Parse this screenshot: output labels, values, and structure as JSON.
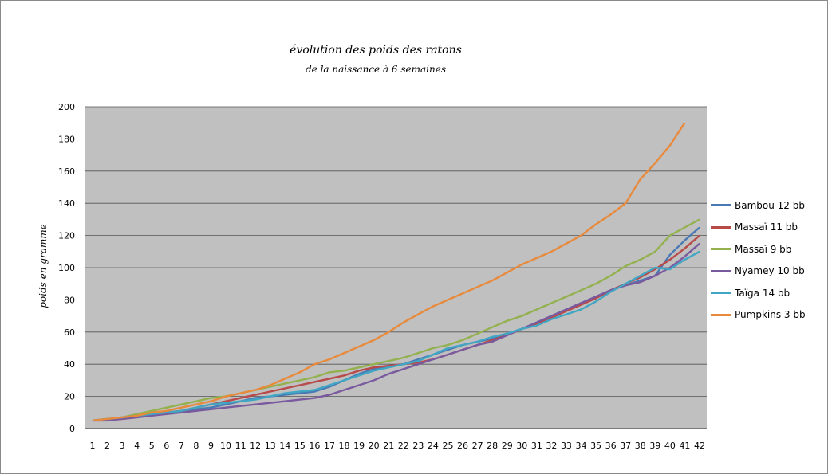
{
  "chart_data": {
    "type": "line",
    "title": "évolution des poids des ratons",
    "subtitle": "de la naissance à 6 semaines",
    "xlabel": "",
    "ylabel": "poids en gramme",
    "ylim": [
      0,
      200
    ],
    "yticks": [
      "0",
      "20",
      "40",
      "60",
      "80",
      "100",
      "120",
      "140",
      "160",
      "180",
      "200"
    ],
    "categories": [
      "1",
      "2",
      "3",
      "4",
      "5",
      "6",
      "7",
      "8",
      "9",
      "10",
      "11",
      "12",
      "13",
      "14",
      "15",
      "16",
      "17",
      "18",
      "19",
      "20",
      "21",
      "22",
      "23",
      "24",
      "25",
      "26",
      "27",
      "28",
      "29",
      "30",
      "31",
      "32",
      "33",
      "34",
      "35",
      "36",
      "37",
      "38",
      "39",
      "40",
      "41",
      "42"
    ],
    "grid": "horizontal",
    "legend": "right",
    "series": [
      {
        "name": "Bambou 12 bb",
        "color": "#4a7ab4",
        "values": [
          5,
          6,
          7,
          8,
          9,
          10,
          11,
          12,
          13,
          15,
          17,
          19,
          20,
          21,
          22,
          23,
          26,
          30,
          34,
          37,
          39,
          40,
          43,
          46,
          49,
          52,
          54,
          56,
          59,
          62,
          66,
          70,
          74,
          78,
          82,
          86,
          89,
          92,
          95,
          108,
          117,
          125
        ]
      },
      {
        "name": "Massaï 11 bb",
        "color": "#b84a4a",
        "values": [
          5,
          6,
          6,
          7,
          9,
          10,
          11,
          13,
          15,
          17,
          19,
          21,
          23,
          25,
          27,
          29,
          31,
          33,
          36,
          38,
          39,
          40,
          41,
          43,
          46,
          49,
          52,
          55,
          58,
          62,
          65,
          69,
          73,
          77,
          81,
          86,
          90,
          94,
          99,
          105,
          112,
          120
        ]
      },
      {
        "name": "Massaï 9 bb",
        "color": "#93b14e",
        "values": [
          5,
          6,
          7,
          9,
          11,
          13,
          15,
          17,
          19,
          20,
          22,
          24,
          26,
          28,
          30,
          32,
          35,
          36,
          38,
          40,
          42,
          44,
          47,
          50,
          52,
          55,
          59,
          63,
          67,
          70,
          74,
          78,
          82,
          86,
          90,
          95,
          101,
          105,
          110,
          120,
          125,
          130
        ]
      },
      {
        "name": "Nyamey 10 bb",
        "color": "#7a5a9e",
        "values": [
          5,
          5,
          6,
          7,
          8,
          9,
          10,
          11,
          12,
          13,
          14,
          15,
          16,
          17,
          18,
          19,
          21,
          24,
          27,
          30,
          34,
          37,
          40,
          43,
          46,
          49,
          52,
          54,
          58,
          62,
          66,
          70,
          74,
          78,
          82,
          86,
          89,
          91,
          95,
          100,
          107,
          115
        ]
      },
      {
        "name": "Taïga 14 bb",
        "color": "#41a6c3",
        "values": [
          5,
          6,
          7,
          8,
          9,
          10,
          11,
          13,
          15,
          16,
          17,
          18,
          20,
          22,
          23,
          24,
          27,
          30,
          33,
          36,
          38,
          40,
          42,
          46,
          50,
          52,
          54,
          57,
          59,
          62,
          64,
          68,
          71,
          74,
          79,
          85,
          90,
          95,
          100,
          99,
          105,
          110
        ]
      },
      {
        "name": "Pumpkins 3 bb",
        "color": "#e88a3c",
        "values": [
          5,
          6,
          7,
          8,
          10,
          11,
          13,
          15,
          17,
          20,
          22,
          24,
          27,
          31,
          35,
          40,
          43,
          47,
          51,
          55,
          60,
          66,
          71,
          76,
          80,
          84,
          88,
          92,
          97,
          102,
          106,
          110,
          115,
          120,
          127,
          133,
          140,
          155,
          165,
          176,
          190,
          null
        ]
      }
    ]
  }
}
